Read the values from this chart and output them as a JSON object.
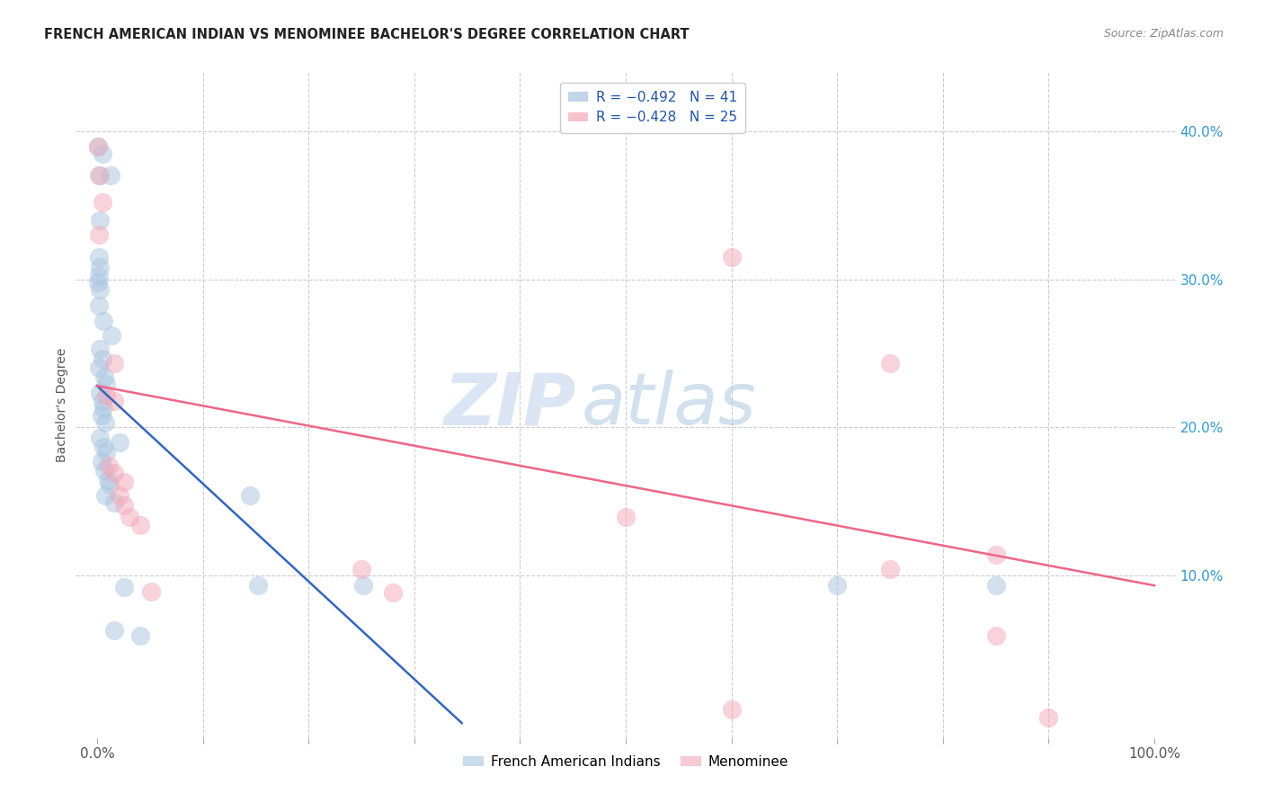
{
  "title": "FRENCH AMERICAN INDIAN VS MENOMINEE BACHELOR'S DEGREE CORRELATION CHART",
  "source": "Source: ZipAtlas.com",
  "ylabel": "Bachelor's Degree",
  "watermark_zip": "ZIP",
  "watermark_atlas": "atlas",
  "legend_entries": [
    {
      "label_r": "R = -0.492",
      "label_n": "N = 41",
      "color": "#a8c4e0"
    },
    {
      "label_r": "R = -0.428",
      "label_n": "N = 25",
      "color": "#f4a8b8"
    }
  ],
  "legend_labels": [
    "French American Indians",
    "Menominee"
  ],
  "blue_color": "#a8c4e0",
  "pink_color": "#f4a8b8",
  "blue_line_color": "#3366bb",
  "pink_line_color": "#ee6688",
  "ytick_labels": [
    "40.0%",
    "30.0%",
    "20.0%",
    "10.0%"
  ],
  "ytick_values": [
    0.4,
    0.3,
    0.2,
    0.1
  ],
  "xtick_minor_values": [
    0.1,
    0.2,
    0.3,
    0.4,
    0.5,
    0.6,
    0.7,
    0.8,
    0.9
  ],
  "xlim": [
    -0.02,
    1.02
  ],
  "ylim": [
    -0.01,
    0.44
  ],
  "bg_color": "#ffffff",
  "grid_color": "#cccccc",
  "blue_points": [
    [
      0.001,
      0.39
    ],
    [
      0.005,
      0.385
    ],
    [
      0.002,
      0.37
    ],
    [
      0.013,
      0.37
    ],
    [
      0.003,
      0.34
    ],
    [
      0.002,
      0.315
    ],
    [
      0.003,
      0.308
    ],
    [
      0.002,
      0.302
    ],
    [
      0.001,
      0.298
    ],
    [
      0.003,
      0.293
    ],
    [
      0.002,
      0.282
    ],
    [
      0.006,
      0.272
    ],
    [
      0.014,
      0.262
    ],
    [
      0.003,
      0.253
    ],
    [
      0.005,
      0.246
    ],
    [
      0.002,
      0.24
    ],
    [
      0.007,
      0.234
    ],
    [
      0.009,
      0.229
    ],
    [
      0.003,
      0.223
    ],
    [
      0.005,
      0.218
    ],
    [
      0.006,
      0.213
    ],
    [
      0.004,
      0.208
    ],
    [
      0.008,
      0.203
    ],
    [
      0.003,
      0.193
    ],
    [
      0.006,
      0.187
    ],
    [
      0.009,
      0.183
    ],
    [
      0.004,
      0.177
    ],
    [
      0.007,
      0.171
    ],
    [
      0.01,
      0.164
    ],
    [
      0.012,
      0.161
    ],
    [
      0.008,
      0.154
    ],
    [
      0.016,
      0.149
    ],
    [
      0.021,
      0.19
    ],
    [
      0.145,
      0.154
    ],
    [
      0.026,
      0.092
    ],
    [
      0.152,
      0.093
    ],
    [
      0.252,
      0.093
    ],
    [
      0.016,
      0.063
    ],
    [
      0.041,
      0.059
    ],
    [
      0.7,
      0.093
    ],
    [
      0.85,
      0.093
    ]
  ],
  "pink_points": [
    [
      0.001,
      0.39
    ],
    [
      0.003,
      0.37
    ],
    [
      0.005,
      0.352
    ],
    [
      0.002,
      0.33
    ],
    [
      0.016,
      0.243
    ],
    [
      0.009,
      0.222
    ],
    [
      0.016,
      0.218
    ],
    [
      0.011,
      0.174
    ],
    [
      0.016,
      0.169
    ],
    [
      0.026,
      0.163
    ],
    [
      0.021,
      0.154
    ],
    [
      0.026,
      0.147
    ],
    [
      0.031,
      0.139
    ],
    [
      0.041,
      0.134
    ],
    [
      0.051,
      0.089
    ],
    [
      0.6,
      0.315
    ],
    [
      0.75,
      0.243
    ],
    [
      0.75,
      0.104
    ],
    [
      0.85,
      0.114
    ],
    [
      0.85,
      0.059
    ],
    [
      0.9,
      0.004
    ],
    [
      0.6,
      0.009
    ],
    [
      0.5,
      0.139
    ],
    [
      0.25,
      0.104
    ],
    [
      0.28,
      0.088
    ]
  ],
  "blue_line_x": [
    0.0,
    0.345
  ],
  "blue_line_y": [
    0.228,
    0.0
  ],
  "pink_line_x": [
    0.0,
    1.0
  ],
  "pink_line_y": [
    0.228,
    0.093
  ]
}
